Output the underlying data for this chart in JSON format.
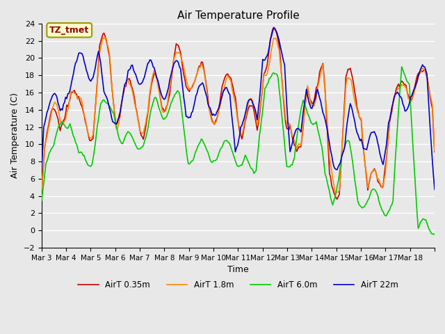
{
  "title": "Air Temperature Profile",
  "xlabel": "Time",
  "ylabel": "Air Temperature (C)",
  "ylim": [
    -2,
    24
  ],
  "yticks": [
    -2,
    0,
    2,
    4,
    6,
    8,
    10,
    12,
    14,
    16,
    18,
    20,
    22,
    24
  ],
  "plot_bg_color": "#e8e8e8",
  "grid_color": "#ffffff",
  "colors": {
    "AirT 0.35m": "#cc0000",
    "AirT 1.8m": "#ff8800",
    "AirT 6.0m": "#00cc00",
    "AirT 22m": "#0000cc"
  },
  "annotation_text": "TZ_tmet",
  "annotation_color": "#990000",
  "annotation_bg": "#ffffcc",
  "annotation_border": "#999900",
  "x_tick_positions": [
    0,
    1,
    2,
    3,
    4,
    5,
    6,
    7,
    8,
    9,
    10,
    11,
    12,
    13,
    14,
    15,
    16
  ],
  "x_labels": [
    "Mar 3",
    "Mar 4",
    "Mar 5",
    "Mar 6",
    "Mar 7",
    "Mar 8",
    "Mar 9",
    "Mar 10",
    "Mar 11",
    "Mar 12",
    "Mar 13",
    "Mar 14",
    "Mar 15",
    "Mar 16",
    "Mar 17",
    "Mar 18",
    ""
  ],
  "n_points": 360,
  "line_width": 1.2
}
